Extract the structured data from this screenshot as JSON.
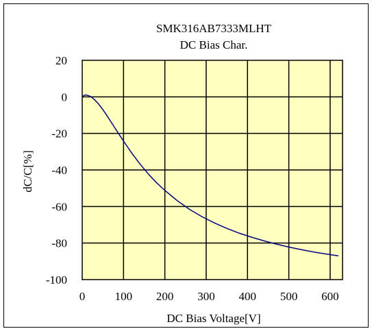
{
  "chart_data": {
    "type": "line",
    "title": "SMK316AB7333MLHT",
    "subtitle": "DC Bias Char.",
    "xlabel": "DC Bias Voltage[V]",
    "ylabel": "dC/C[%]",
    "xlim": [
      0,
      630
    ],
    "ylim": [
      -100,
      20
    ],
    "x_ticks": [
      0,
      100,
      200,
      300,
      400,
      500,
      600
    ],
    "y_ticks": [
      20,
      0,
      -20,
      -40,
      -60,
      -80,
      -100
    ],
    "x_tick_labels": [
      "0",
      "100",
      "200",
      "300",
      "400",
      "500",
      "600"
    ],
    "y_tick_labels": [
      "20",
      "0",
      "-20",
      "-40",
      "-60",
      "-80",
      "-100"
    ],
    "grid": true,
    "plot_background": "#ffffc0",
    "line_color": "#000080",
    "series": [
      {
        "x": [
          0,
          5,
          10,
          15,
          20,
          25,
          30,
          40,
          50,
          60,
          70,
          80,
          90,
          100,
          120,
          140,
          160,
          180,
          200,
          230,
          260,
          290,
          320,
          350,
          380,
          410,
          440,
          470,
          500,
          530,
          560,
          590,
          620
        ],
        "y": [
          0,
          0.9,
          1.0,
          0.7,
          0.2,
          -0.6,
          -1.6,
          -4.0,
          -7.0,
          -10.3,
          -13.8,
          -17.3,
          -20.8,
          -24.2,
          -30.8,
          -36.8,
          -42.2,
          -47.0,
          -51.2,
          -56.8,
          -61.6,
          -65.6,
          -69.0,
          -72.0,
          -74.6,
          -76.8,
          -78.8,
          -80.6,
          -82.2,
          -83.6,
          -84.9,
          -86.0,
          -87.0
        ]
      }
    ]
  }
}
